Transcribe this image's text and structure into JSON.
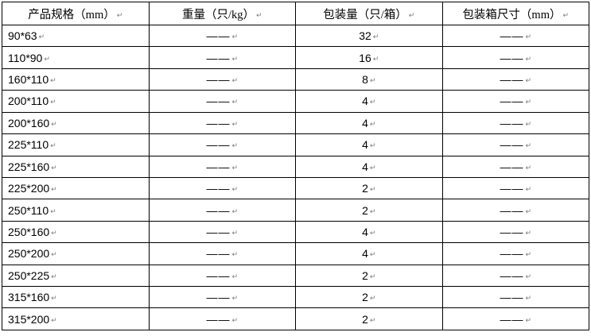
{
  "table": {
    "paragraph_mark": "↵",
    "columns": [
      "产品规格（mm）",
      "重量（只/kg）",
      "包装量（只/箱）",
      "包装箱尺寸（mm）"
    ],
    "rows": [
      {
        "spec": "90*63",
        "weight": "——",
        "qty": "32",
        "box": "——"
      },
      {
        "spec": "110*90",
        "weight": "——",
        "qty": "16",
        "box": "——"
      },
      {
        "spec": "160*110",
        "weight": "——",
        "qty": "8",
        "box": "——"
      },
      {
        "spec": "200*110",
        "weight": "——",
        "qty": "4",
        "box": "——"
      },
      {
        "spec": "200*160",
        "weight": "——",
        "qty": "4",
        "box": "——"
      },
      {
        "spec": "225*110",
        "weight": "——",
        "qty": "4",
        "box": "——"
      },
      {
        "spec": "225*160",
        "weight": "——",
        "qty": "4",
        "box": "——"
      },
      {
        "spec": "225*200",
        "weight": "——",
        "qty": "2",
        "box": "——"
      },
      {
        "spec": "250*110",
        "weight": "——",
        "qty": "2",
        "box": "——"
      },
      {
        "spec": "250*160",
        "weight": "——",
        "qty": "4",
        "box": "——"
      },
      {
        "spec": "250*200",
        "weight": "——",
        "qty": "4",
        "box": "——"
      },
      {
        "spec": "250*225",
        "weight": "——",
        "qty": "2",
        "box": "——"
      },
      {
        "spec": "315*160",
        "weight": "——",
        "qty": "2",
        "box": "——"
      },
      {
        "spec": "315*200",
        "weight": "——",
        "qty": "2",
        "box": "——"
      }
    ],
    "colors": {
      "border": "#000000",
      "text": "#000000",
      "paragraph_mark": "#7a7a7a",
      "background": "#ffffff"
    }
  }
}
